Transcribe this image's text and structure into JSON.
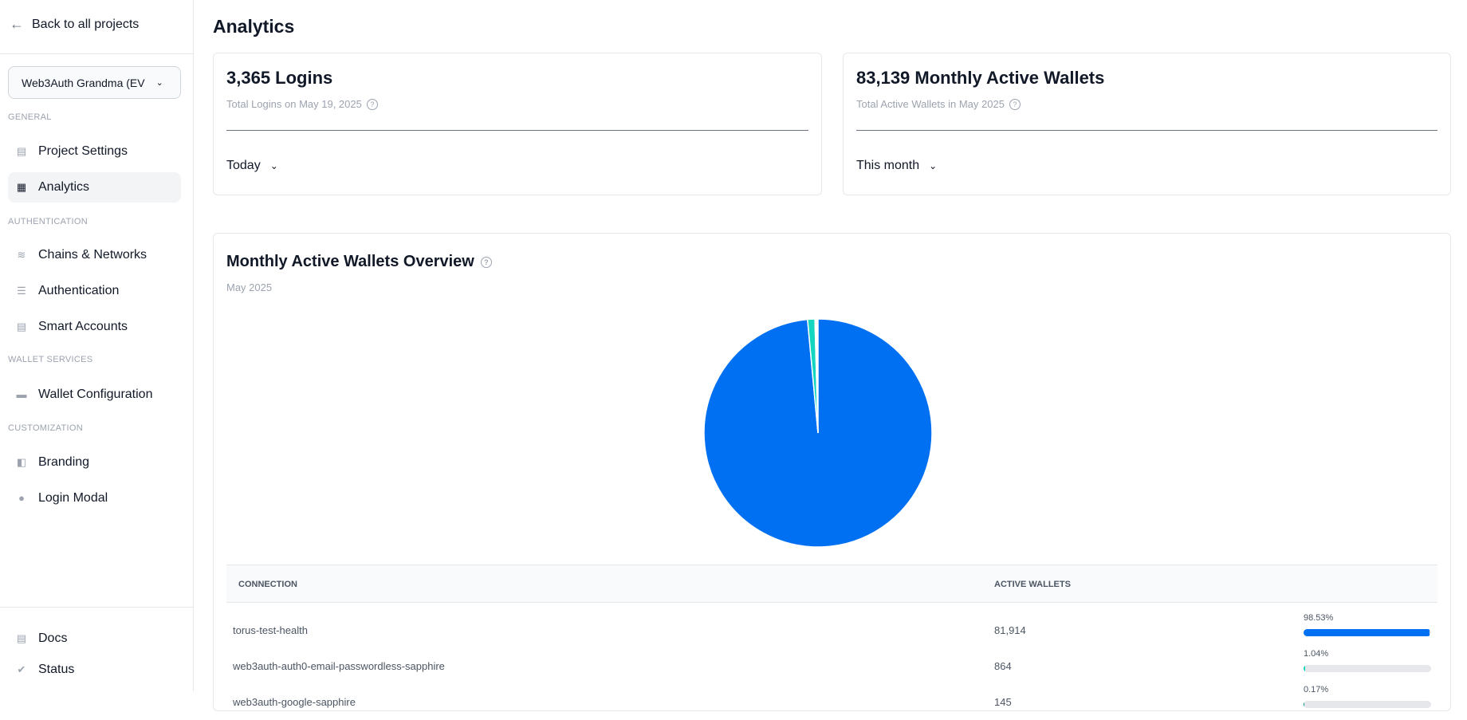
{
  "sidebar": {
    "back": "Back to all projects",
    "project": "Web3Auth Grandma (EV",
    "sections": {
      "general": "GENERAL",
      "authentication": "AUTHENTICATION",
      "wallet_services": "WALLET SERVICES",
      "customization": "CUSTOMIZATION"
    },
    "items": {
      "project_settings": "Project Settings",
      "analytics": "Analytics",
      "chains": "Chains & Networks",
      "authentication": "Authentication",
      "smart_accounts": "Smart Accounts",
      "wallet_config": "Wallet Configuration",
      "branding": "Branding",
      "login_modal": "Login Modal",
      "docs": "Docs",
      "status": "Status"
    }
  },
  "page": {
    "title": "Analytics"
  },
  "logins": {
    "title": "3,365 Logins",
    "subtitle": "Total Logins on May 19, 2025",
    "range": "Today"
  },
  "wallets": {
    "title": "83,139 Monthly Active Wallets",
    "subtitle": "Total Active Wallets in May 2025",
    "range": "This month"
  },
  "overview": {
    "title": "Monthly Active Wallets Overview",
    "subtitle": "May 2025"
  },
  "table": {
    "headers": [
      "CONNECTION",
      "ACTIVE WALLETS"
    ],
    "rows": [
      {
        "connection": "torus-test-health",
        "wallets": "81,914",
        "percent": "98.53%"
      },
      {
        "connection": "web3auth-auth0-email-passwordless-sapphire",
        "wallets": "864",
        "percent": "1.04%"
      },
      {
        "connection": "web3auth-google-sapphire",
        "wallets": "145",
        "percent": "0.17%"
      }
    ]
  },
  "chart_data": {
    "type": "pie",
    "categories": [
      "torus-test-health",
      "web3auth-auth0-email-passwordless-sapphire",
      "web3auth-google-sapphire"
    ],
    "values": [
      98.53,
      1.04,
      0.17
    ],
    "colors": [
      "#0070f3",
      "#14d6c0",
      "#0a8f8f"
    ]
  }
}
